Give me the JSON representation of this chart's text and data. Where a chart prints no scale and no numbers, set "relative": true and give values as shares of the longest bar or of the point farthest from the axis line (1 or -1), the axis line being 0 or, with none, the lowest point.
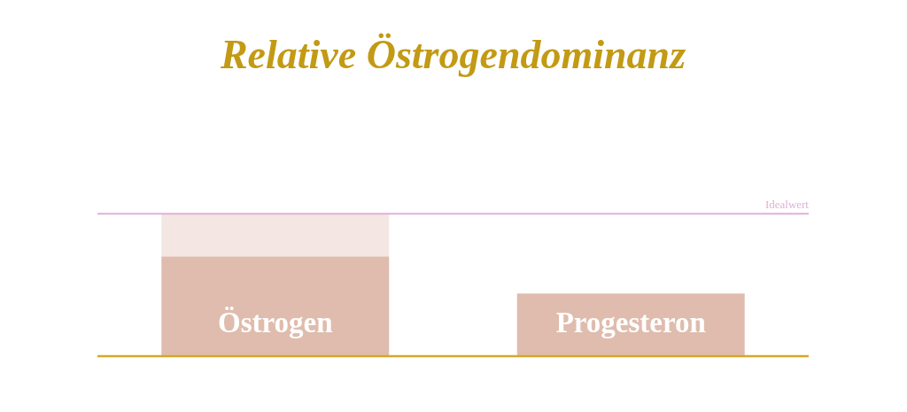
{
  "chart_data": {
    "type": "bar",
    "title": "Relative Östrogendominanz",
    "categories": [
      "Östrogen",
      "Progesteron"
    ],
    "stacked": true,
    "relative": true,
    "series": [
      {
        "color": "#dfbcad",
        "values": [
          0.7,
          0.44
        ]
      },
      {
        "color": "#f4e7e3",
        "values": [
          0.3,
          null
        ]
      }
    ],
    "ref_lines": [
      {
        "axis": "y",
        "value": 1,
        "label": "Idealwert",
        "color": "#e2b0d8"
      }
    ]
  }
}
